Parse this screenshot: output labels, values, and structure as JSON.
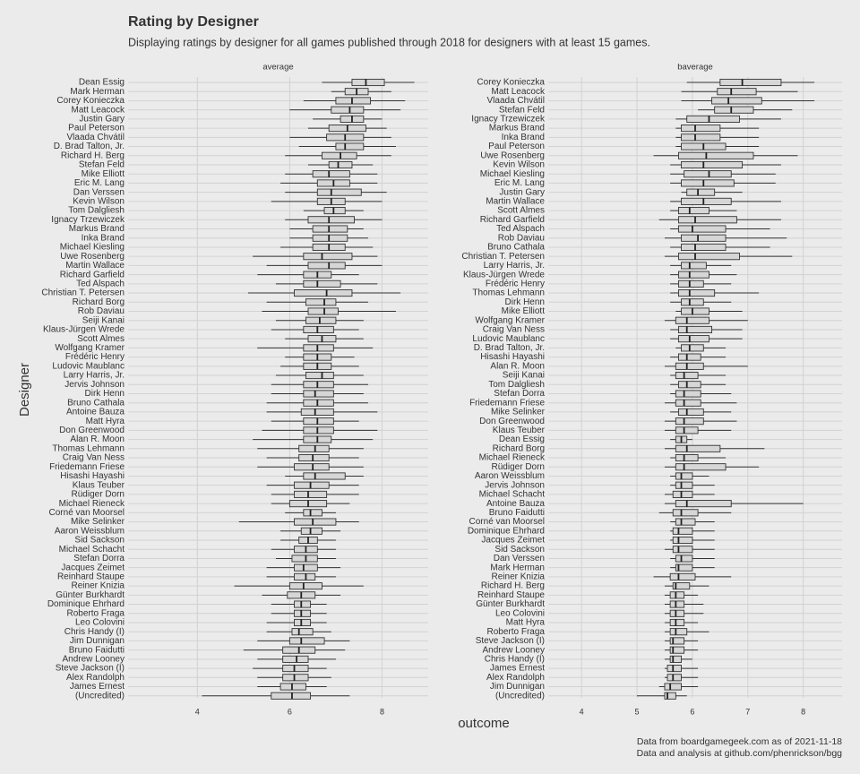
{
  "title": "Rating by Designer",
  "subtitle": "Displaying ratings by designer for all games published through 2018 for designers with at least 15 games.",
  "y_label": "Designer",
  "x_label": "outcome",
  "caption": [
    "Data from boardgamegeek.com as of 2021-11-18",
    "Data and analysis at github.com/phenrickson/bgg"
  ],
  "chart_data": [
    {
      "type": "boxplot",
      "facet": "average",
      "xlim": [
        2.5,
        9.0
      ],
      "xticks": [
        4,
        6,
        8
      ],
      "categories": [
        "Dean Essig",
        "Mark Herman",
        "Corey Konieczka",
        "Matt Leacock",
        "Justin Gary",
        "Paul Peterson",
        "Vlaada Chvátil",
        "D. Brad Talton, Jr.",
        "Richard H. Berg",
        "Stefan Feld",
        "Mike Elliott",
        "Eric M. Lang",
        "Dan Verssen",
        "Kevin Wilson",
        "Tom Dalgliesh",
        "Ignacy Trzewiczek",
        "Markus Brand",
        "Inka Brand",
        "Michael Kiesling",
        "Uwe Rosenberg",
        "Martin Wallace",
        "Richard Garfield",
        "Ted Alspach",
        "Christian T. Petersen",
        "Richard Borg",
        "Rob Daviau",
        "Seiji Kanai",
        "Klaus-Jürgen Wrede",
        "Scott Almes",
        "Wolfgang Kramer",
        "Frédéric Henry",
        "Ludovic Maublanc",
        "Larry Harris, Jr.",
        "Jervis Johnson",
        "Dirk Henn",
        "Bruno Cathala",
        "Antoine Bauza",
        "Matt Hyra",
        "Don Greenwood",
        "Alan R. Moon",
        "Thomas Lehmann",
        "Craig Van Ness",
        "Friedemann Friese",
        "Hisashi Hayashi",
        "Klaus Teuber",
        "Rüdiger Dorn",
        "Michael Rieneck",
        "Corné van Moorsel",
        "Mike Selinker",
        "Aaron Weissblum",
        "Sid Sackson",
        "Michael Schacht",
        "Stefan Dorra",
        "Jacques Zeimet",
        "Reinhard Staupe",
        "Reiner Knizia",
        "Günter Burkhardt",
        "Dominique Ehrhard",
        "Roberto Fraga",
        "Leo Colovini",
        "Chris Handy (I)",
        "Jim Dunnigan",
        "Bruno Faidutti",
        "Andrew Looney",
        "Steve Jackson (I)",
        "Alex Randolph",
        "James Ernest",
        "(Uncredited)"
      ],
      "values": [
        [
          6.7,
          7.35,
          7.65,
          8.05,
          8.7
        ],
        [
          6.9,
          7.2,
          7.45,
          7.7,
          8.2
        ],
        [
          6.3,
          7.0,
          7.35,
          7.75,
          8.5
        ],
        [
          6.0,
          6.9,
          7.3,
          7.6,
          8.4
        ],
        [
          6.5,
          7.1,
          7.35,
          7.6,
          8.0
        ],
        [
          6.4,
          6.85,
          7.25,
          7.65,
          8.1
        ],
        [
          6.0,
          6.8,
          7.2,
          7.6,
          8.2
        ],
        [
          6.2,
          7.0,
          7.2,
          7.6,
          8.3
        ],
        [
          5.9,
          6.7,
          7.1,
          7.45,
          8.2
        ],
        [
          6.4,
          6.85,
          7.05,
          7.35,
          7.8
        ],
        [
          5.9,
          6.5,
          6.85,
          7.3,
          7.9
        ],
        [
          5.8,
          6.6,
          6.95,
          7.3,
          7.9
        ],
        [
          5.9,
          6.6,
          6.9,
          7.55,
          8.1
        ],
        [
          5.6,
          6.6,
          6.9,
          7.2,
          8.0
        ],
        [
          6.3,
          6.75,
          6.95,
          7.2,
          7.6
        ],
        [
          5.9,
          6.4,
          6.85,
          7.4,
          8.0
        ],
        [
          6.0,
          6.5,
          6.85,
          7.25,
          7.6
        ],
        [
          6.0,
          6.5,
          6.85,
          7.25,
          7.7
        ],
        [
          5.8,
          6.5,
          6.85,
          7.2,
          7.8
        ],
        [
          5.2,
          6.3,
          6.7,
          7.35,
          7.9
        ],
        [
          5.5,
          6.4,
          6.85,
          7.2,
          8.0
        ],
        [
          5.3,
          6.3,
          6.6,
          6.9,
          7.5
        ],
        [
          5.7,
          6.3,
          6.6,
          7.1,
          7.9
        ],
        [
          5.1,
          6.1,
          6.8,
          7.35,
          8.4
        ],
        [
          5.5,
          6.35,
          6.75,
          7.0,
          7.7
        ],
        [
          5.4,
          6.4,
          6.75,
          7.05,
          8.3
        ],
        [
          5.7,
          6.35,
          6.65,
          7.0,
          7.6
        ],
        [
          5.6,
          6.3,
          6.6,
          6.95,
          7.5
        ],
        [
          5.9,
          6.4,
          6.7,
          7.0,
          7.6
        ],
        [
          5.3,
          6.3,
          6.6,
          6.95,
          7.8
        ],
        [
          5.9,
          6.3,
          6.6,
          6.9,
          7.4
        ],
        [
          5.8,
          6.3,
          6.6,
          6.9,
          7.5
        ],
        [
          5.7,
          6.35,
          6.7,
          6.95,
          7.6
        ],
        [
          5.6,
          6.3,
          6.6,
          6.95,
          7.7
        ],
        [
          5.6,
          6.3,
          6.55,
          6.95,
          7.6
        ],
        [
          5.5,
          6.3,
          6.6,
          6.95,
          7.7
        ],
        [
          5.5,
          6.25,
          6.55,
          6.95,
          7.9
        ],
        [
          5.6,
          6.3,
          6.6,
          6.95,
          7.5
        ],
        [
          5.4,
          6.3,
          6.6,
          6.95,
          7.9
        ],
        [
          5.2,
          6.3,
          6.6,
          6.9,
          7.8
        ],
        [
          5.3,
          6.2,
          6.55,
          6.85,
          7.6
        ],
        [
          5.5,
          6.2,
          6.5,
          6.85,
          7.5
        ],
        [
          5.3,
          6.1,
          6.5,
          6.85,
          7.6
        ],
        [
          5.9,
          6.3,
          6.55,
          7.2,
          7.6
        ],
        [
          5.5,
          6.1,
          6.45,
          6.85,
          7.5
        ],
        [
          5.6,
          6.1,
          6.4,
          6.8,
          7.5
        ],
        [
          5.6,
          6.0,
          6.4,
          6.8,
          7.3
        ],
        [
          5.9,
          6.3,
          6.45,
          6.7,
          7.0
        ],
        [
          4.9,
          6.1,
          6.5,
          7.0,
          7.5
        ],
        [
          5.8,
          6.25,
          6.45,
          6.7,
          7.1
        ],
        [
          5.8,
          6.2,
          6.4,
          6.6,
          7.0
        ],
        [
          5.6,
          6.1,
          6.35,
          6.6,
          7.0
        ],
        [
          5.7,
          6.05,
          6.35,
          6.6,
          7.0
        ],
        [
          5.5,
          6.1,
          6.3,
          6.6,
          7.1
        ],
        [
          5.5,
          6.1,
          6.35,
          6.55,
          7.0
        ],
        [
          4.8,
          6.0,
          6.3,
          6.7,
          7.6
        ],
        [
          5.4,
          5.95,
          6.25,
          6.55,
          7.1
        ],
        [
          5.6,
          6.1,
          6.25,
          6.45,
          6.8
        ],
        [
          5.6,
          6.1,
          6.25,
          6.45,
          6.8
        ],
        [
          5.5,
          6.1,
          6.25,
          6.45,
          6.8
        ],
        [
          5.5,
          6.05,
          6.2,
          6.5,
          6.9
        ],
        [
          5.3,
          6.0,
          6.25,
          6.75,
          7.3
        ],
        [
          5.0,
          5.85,
          6.2,
          6.55,
          7.2
        ],
        [
          5.3,
          5.85,
          6.15,
          6.4,
          7.0
        ],
        [
          5.2,
          5.85,
          6.1,
          6.4,
          6.8
        ],
        [
          5.3,
          5.85,
          6.1,
          6.4,
          6.9
        ],
        [
          5.3,
          5.8,
          6.05,
          6.35,
          6.8
        ],
        [
          4.1,
          5.6,
          6.05,
          6.45,
          7.3
        ]
      ]
    },
    {
      "type": "boxplot",
      "facet": "baverage",
      "xlim": [
        3.4,
        8.7
      ],
      "xticks": [
        4,
        5,
        6,
        7,
        8
      ],
      "categories": [
        "Corey Konieczka",
        "Matt Leacock",
        "Vlaada Chvátil",
        "Stefan Feld",
        "Ignacy Trzewiczek",
        "Markus Brand",
        "Inka Brand",
        "Paul Peterson",
        "Uwe Rosenberg",
        "Kevin Wilson",
        "Michael Kiesling",
        "Eric M. Lang",
        "Justin Gary",
        "Martin Wallace",
        "Scott Almes",
        "Richard Garfield",
        "Ted Alspach",
        "Rob Daviau",
        "Bruno Cathala",
        "Christian T. Petersen",
        "Larry Harris, Jr.",
        "Klaus-Jürgen Wrede",
        "Frédéric Henry",
        "Thomas Lehmann",
        "Dirk Henn",
        "Mike Elliott",
        "Wolfgang Kramer",
        "Craig Van Ness",
        "Ludovic Maublanc",
        "D. Brad Talton, Jr.",
        "Hisashi Hayashi",
        "Alan R. Moon",
        "Seiji Kanai",
        "Tom Dalgliesh",
        "Stefan Dorra",
        "Friedemann Friese",
        "Mike Selinker",
        "Don Greenwood",
        "Klaus Teuber",
        "Dean Essig",
        "Richard Borg",
        "Michael Rieneck",
        "Rüdiger Dorn",
        "Aaron Weissblum",
        "Jervis Johnson",
        "Michael Schacht",
        "Antoine Bauza",
        "Bruno Faidutti",
        "Corné van Moorsel",
        "Dominique Ehrhard",
        "Jacques Zeimet",
        "Sid Sackson",
        "Dan Verssen",
        "Mark Herman",
        "Reiner Knizia",
        "Richard H. Berg",
        "Reinhard Staupe",
        "Günter Burkhardt",
        "Leo Colovini",
        "Matt Hyra",
        "Roberto Fraga",
        "Steve Jackson (I)",
        "Andrew Looney",
        "Chris Handy (I)",
        "James Ernest",
        "Alex Randolph",
        "Jim Dunnigan",
        "(Uncredited)"
      ],
      "values": [
        [
          5.9,
          6.5,
          6.9,
          7.6,
          8.2
        ],
        [
          5.8,
          6.45,
          6.7,
          7.15,
          7.9
        ],
        [
          5.8,
          6.35,
          6.65,
          7.25,
          8.2
        ],
        [
          6.1,
          6.4,
          6.7,
          7.1,
          7.8
        ],
        [
          5.7,
          5.9,
          6.3,
          6.85,
          7.6
        ],
        [
          5.7,
          5.8,
          6.05,
          6.5,
          7.2
        ],
        [
          5.7,
          5.8,
          6.05,
          6.5,
          7.2
        ],
        [
          5.7,
          5.8,
          6.2,
          6.6,
          7.2
        ],
        [
          5.3,
          5.75,
          6.25,
          7.1,
          7.9
        ],
        [
          5.6,
          5.8,
          6.2,
          6.9,
          7.6
        ],
        [
          5.6,
          5.85,
          6.3,
          6.7,
          7.5
        ],
        [
          5.6,
          5.8,
          6.2,
          6.75,
          7.5
        ],
        [
          5.8,
          5.9,
          6.1,
          6.4,
          6.9
        ],
        [
          5.6,
          5.8,
          6.2,
          6.7,
          7.6
        ],
        [
          5.6,
          5.75,
          5.95,
          6.3,
          6.8
        ],
        [
          5.4,
          5.75,
          6.05,
          6.8,
          7.6
        ],
        [
          5.6,
          5.75,
          6.0,
          6.6,
          7.4
        ],
        [
          5.5,
          5.8,
          6.1,
          6.6,
          7.7
        ],
        [
          5.6,
          5.8,
          6.05,
          6.6,
          7.4
        ],
        [
          5.5,
          5.75,
          6.05,
          6.85,
          7.8
        ],
        [
          5.6,
          5.8,
          5.95,
          6.25,
          6.7
        ],
        [
          5.6,
          5.75,
          5.95,
          6.3,
          6.8
        ],
        [
          5.6,
          5.75,
          5.95,
          6.2,
          6.7
        ],
        [
          5.6,
          5.75,
          5.95,
          6.4,
          7.2
        ],
        [
          5.6,
          5.8,
          5.95,
          6.2,
          6.7
        ],
        [
          5.7,
          5.8,
          6.0,
          6.3,
          6.9
        ],
        [
          5.5,
          5.7,
          5.9,
          6.3,
          7.0
        ],
        [
          5.6,
          5.75,
          5.9,
          6.35,
          6.9
        ],
        [
          5.6,
          5.75,
          5.95,
          6.3,
          6.9
        ],
        [
          5.7,
          5.8,
          5.95,
          6.2,
          6.6
        ],
        [
          5.6,
          5.75,
          5.9,
          6.15,
          6.6
        ],
        [
          5.5,
          5.7,
          5.9,
          6.2,
          7.0
        ],
        [
          5.6,
          5.7,
          5.85,
          6.1,
          6.6
        ],
        [
          5.6,
          5.75,
          5.9,
          6.15,
          6.6
        ],
        [
          5.6,
          5.7,
          5.85,
          6.15,
          6.7
        ],
        [
          5.5,
          5.7,
          5.85,
          6.15,
          6.8
        ],
        [
          5.6,
          5.75,
          5.9,
          6.2,
          6.7
        ],
        [
          5.5,
          5.7,
          5.85,
          6.2,
          6.8
        ],
        [
          5.5,
          5.7,
          5.85,
          6.1,
          6.7
        ],
        [
          5.6,
          5.7,
          5.8,
          5.9,
          6.0
        ],
        [
          5.5,
          5.7,
          5.9,
          6.5,
          7.3
        ],
        [
          5.6,
          5.7,
          5.85,
          6.1,
          6.6
        ],
        [
          5.5,
          5.7,
          5.85,
          6.6,
          7.2
        ],
        [
          5.6,
          5.7,
          5.8,
          6.0,
          6.3
        ],
        [
          5.6,
          5.7,
          5.8,
          6.0,
          6.4
        ],
        [
          5.5,
          5.65,
          5.8,
          6.0,
          6.4
        ],
        [
          5.5,
          5.7,
          5.9,
          6.7,
          8.0
        ],
        [
          5.4,
          5.65,
          5.8,
          6.1,
          6.7
        ],
        [
          5.6,
          5.7,
          5.8,
          6.05,
          6.4
        ],
        [
          5.6,
          5.65,
          5.75,
          6.0,
          6.4
        ],
        [
          5.6,
          5.65,
          5.75,
          6.0,
          6.4
        ],
        [
          5.5,
          5.65,
          5.75,
          6.0,
          6.4
        ],
        [
          5.6,
          5.7,
          5.8,
          6.0,
          6.4
        ],
        [
          5.6,
          5.7,
          5.75,
          6.0,
          6.4
        ],
        [
          5.3,
          5.6,
          5.75,
          6.05,
          6.7
        ],
        [
          5.5,
          5.65,
          5.7,
          5.95,
          6.3
        ],
        [
          5.5,
          5.6,
          5.7,
          5.85,
          6.1
        ],
        [
          5.5,
          5.6,
          5.7,
          5.85,
          6.2
        ],
        [
          5.5,
          5.6,
          5.7,
          5.85,
          6.2
        ],
        [
          5.5,
          5.6,
          5.7,
          5.85,
          6.1
        ],
        [
          5.5,
          5.6,
          5.7,
          5.9,
          6.3
        ],
        [
          5.5,
          5.6,
          5.65,
          5.85,
          6.1
        ],
        [
          5.5,
          5.6,
          5.65,
          5.85,
          6.1
        ],
        [
          5.5,
          5.6,
          5.65,
          5.8,
          6.0
        ],
        [
          5.5,
          5.55,
          5.65,
          5.8,
          6.1
        ],
        [
          5.5,
          5.55,
          5.65,
          5.8,
          6.1
        ],
        [
          5.4,
          5.5,
          5.6,
          5.8,
          6.1
        ],
        [
          5.0,
          5.5,
          5.55,
          5.7,
          5.9
        ]
      ]
    }
  ]
}
